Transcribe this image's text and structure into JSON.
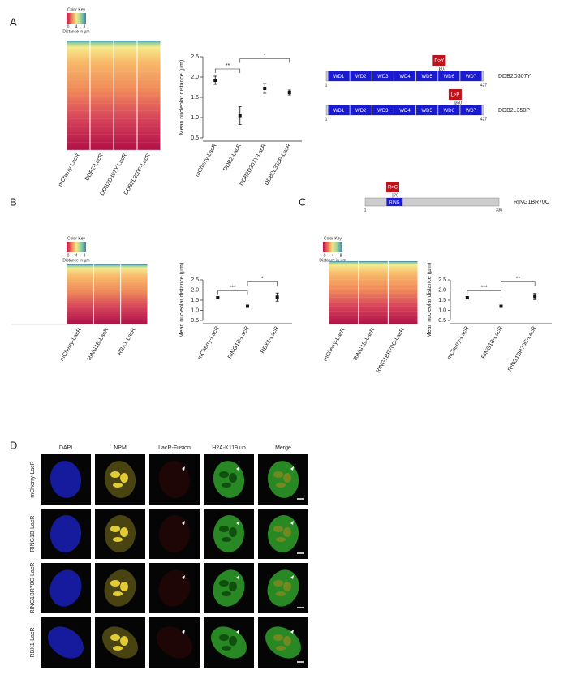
{
  "figure": {
    "panel_labels": [
      "A",
      "B",
      "C",
      "D"
    ],
    "color_keys": [
      {
        "title": "Color Key",
        "ticks": [
          0,
          4,
          8
        ],
        "label": "Distance in µm"
      },
      {
        "title": "Color Key",
        "ticks": [
          0,
          4,
          8
        ],
        "label": "Distance in µm"
      },
      {
        "title": "Color Key",
        "ticks": [
          0,
          4,
          8
        ],
        "label": "Distance in µm"
      }
    ],
    "heatmaps": [
      {
        "categories": [
          "mCherry-LacR",
          "DDB2-LacR",
          "DDB2D307Y-LacR",
          "DDB2L350P-LacR"
        ]
      },
      {
        "categories": [
          "mCherry-LacR",
          "RING1B-LacR",
          "RBX1-LacR"
        ]
      },
      {
        "categories": [
          "mCherry-LacR",
          "RING1B-LacR",
          "RING1BR70C-LacR"
        ]
      }
    ],
    "proteins": [
      {
        "name": "DDB2D307Y",
        "start": 1,
        "end": 427,
        "mutation": "D>Y",
        "position": 307,
        "domains": [
          "WD1",
          "WD2",
          "WD3",
          "WD4",
          "WD5",
          "WD6",
          "WD7"
        ]
      },
      {
        "name": "DDB2L350P",
        "start": 1,
        "end": 427,
        "mutation": "L>P",
        "position": 350,
        "domains": [
          "WD1",
          "WD2",
          "WD3",
          "WD4",
          "WD5",
          "WD6",
          "WD7"
        ]
      },
      {
        "name": "RING1BR70C",
        "start": 1,
        "end": 336,
        "mutation": "R>C",
        "position": 70,
        "domains": [
          "RING"
        ]
      }
    ],
    "microscopy": {
      "columns": [
        "DAPI",
        "NPM",
        "LacR-Fusion",
        "H2A-K119 ub",
        "Merge"
      ],
      "rows": [
        "mCherry-LacR",
        "RING1B-LacR",
        "RING1BR70C-LacR",
        "RBX1-LacR"
      ]
    }
  },
  "chart_data": [
    {
      "type": "scatter",
      "ylabel": "Mean nucleolar distance (µm)",
      "categories": [
        "mCherry-LacR",
        "DDB2-LacR",
        "DDB2D307Y-LacR",
        "DDB2L350P-LacR"
      ],
      "values": [
        1.92,
        1.05,
        1.72,
        1.62
      ],
      "errors": [
        0.1,
        0.22,
        0.12,
        0.06
      ],
      "ylim": [
        0.5,
        2.5
      ],
      "yticks": [
        0.5,
        {
          "value": 1,
          "label": "1.0"
        },
        1.5,
        {
          "value": 2,
          "label": "2.0"
        },
        2.5
      ],
      "significance": [
        "**",
        "*"
      ],
      "color": "#111"
    },
    {
      "type": "scatter",
      "ylabel": "Mean nucleolar distance (µm)",
      "categories": [
        "mCherry-LacR",
        "RING1B-LacR",
        "RBX1-LacR"
      ],
      "values": [
        1.62,
        1.2,
        1.65
      ],
      "errors": [
        0.04,
        0.03,
        0.2
      ],
      "ylim": [
        0.5,
        2.5
      ],
      "yticks": [
        0.5,
        {
          "value": 1,
          "label": "1.0"
        },
        1.5,
        {
          "value": 2,
          "label": "2.0"
        },
        2.5
      ],
      "significance": [
        "***",
        "*"
      ],
      "color": "#111"
    },
    {
      "type": "scatter",
      "ylabel": "Mean nucleolar distance (µm)",
      "categories": [
        "mCherry-LacR",
        "RING1B-LacR",
        "RING1BR70C-LacR"
      ],
      "values": [
        1.62,
        1.2,
        1.68
      ],
      "errors": [
        0.04,
        0.03,
        0.15
      ],
      "ylim": [
        0.5,
        2.5
      ],
      "yticks": [
        0.5,
        {
          "value": 1,
          "label": "1.0"
        },
        1.5,
        {
          "value": 2,
          "label": "2.0"
        },
        2.5
      ],
      "significance": [
        "***",
        "**"
      ],
      "color": "#111"
    }
  ]
}
